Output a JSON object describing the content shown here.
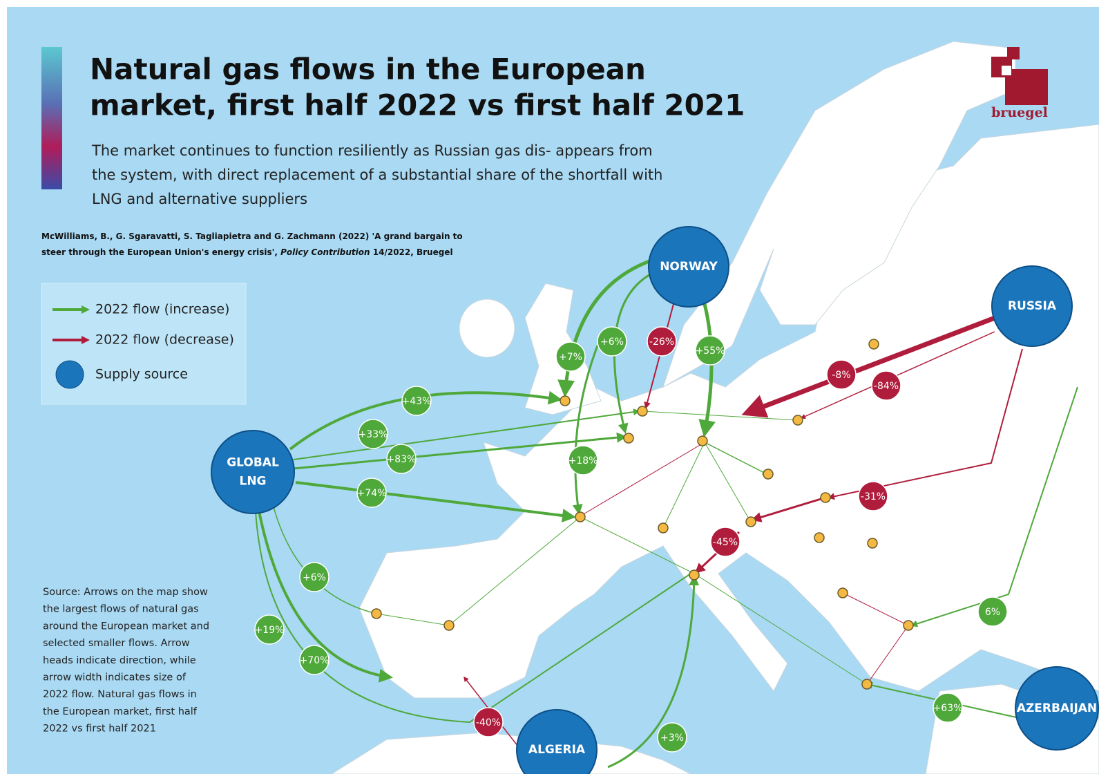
{
  "header": {
    "title_lines": [
      "Natural gas flows in the European",
      "market, first half 2022 vs first half 2021"
    ],
    "subtitle_lines": [
      "The market continues to function resiliently as Russian gas dis- appears from",
      "the system, with direct replacement of a substantial share of the shortfall with",
      "LNG and alternative suppliers"
    ],
    "citation_lines": [
      [
        "McWilliams, B., G. Sgaravatti, S. Tagliapietra and G. Zachmann (2022) 'A grand bargain to"
      ],
      [
        "steer through the European Union's energy crisis', ",
        "Policy Contribution",
        " 14/2022, Bruegel"
      ]
    ]
  },
  "brand": "bruegel",
  "legend": [
    {
      "label": "2022 flow (increase)",
      "color": "#4fa83a"
    },
    {
      "label": "2022 flow (decrease)",
      "color": "#b01c3c"
    },
    {
      "label": "Supply source",
      "color": "#1b75bb"
    }
  ],
  "source_note_lines": [
    "Source: Arrows on the map show",
    "the largest flows of natural gas",
    "around the European market and",
    "selected smaller flows. Arrow",
    "heads indicate direction, while",
    "arrow width indicates size of",
    "2022 flow. Natural gas flows in",
    "the European market, first half",
    "2022 vs first half 2021"
  ],
  "sources": [
    {
      "label_lines": [
        "NORWAY"
      ]
    },
    {
      "label_lines": [
        "RUSSIA"
      ]
    },
    {
      "label_lines": [
        "GLOBAL",
        "LNG"
      ]
    },
    {
      "label_lines": [
        "ALGERIA"
      ]
    },
    {
      "label_lines": [
        "AZERBAIJAN"
      ]
    }
  ],
  "flows": [
    {
      "label": "+7%",
      "color": "#4fa83a"
    },
    {
      "label": "+6%",
      "color": "#4fa83a"
    },
    {
      "label": "-26%",
      "color": "#b01c3c"
    },
    {
      "label": "+55%",
      "color": "#4fa83a"
    },
    {
      "label": "-8%",
      "color": "#b01c3c"
    },
    {
      "label": "-84%",
      "color": "#b01c3c"
    },
    {
      "label": "+43%",
      "color": "#4fa83a"
    },
    {
      "label": "+33%",
      "color": "#4fa83a"
    },
    {
      "label": "+83%",
      "color": "#4fa83a"
    },
    {
      "label": "+18%",
      "color": "#4fa83a"
    },
    {
      "label": "+74%",
      "color": "#4fa83a"
    },
    {
      "label": "-31%",
      "color": "#b01c3c"
    },
    {
      "label": "-45%",
      "color": "#b01c3c"
    },
    {
      "label": "+6%",
      "color": "#4fa83a"
    },
    {
      "label": "6%",
      "color": "#4fa83a"
    },
    {
      "label": "+19%",
      "color": "#4fa83a"
    },
    {
      "label": "+70%",
      "color": "#4fa83a"
    },
    {
      "label": "+63%",
      "color": "#4fa83a"
    },
    {
      "label": "-40%",
      "color": "#b01c3c"
    },
    {
      "label": "+3%",
      "color": "#4fa83a"
    }
  ]
}
